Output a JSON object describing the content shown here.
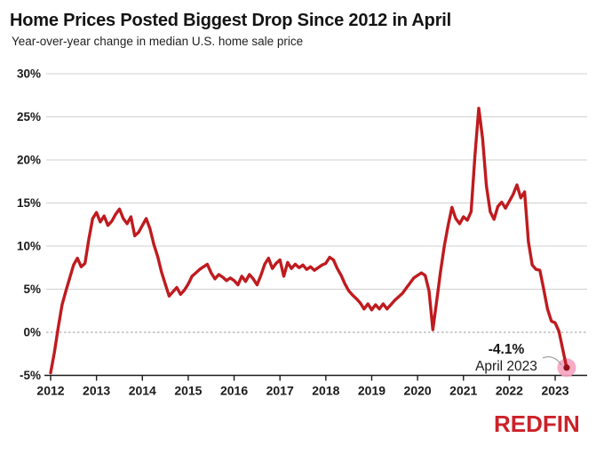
{
  "header": {
    "title": "Home Prices Posted Biggest Drop Since 2012 in April",
    "subtitle": "Year-over-year change in median U.S. home sale price"
  },
  "annotation": {
    "value_label": "-4.1%",
    "date_label": "April 2023"
  },
  "logo": {
    "text": "REDFIN",
    "color": "#cb2229"
  },
  "colors": {
    "line": "#bf1b1f",
    "line_dark": "#8e1014",
    "grid": "#d0d0d0",
    "zero_line": "#9a9a9a",
    "axis": "#1a1a1a",
    "highlight": "#f6a2c0",
    "leader": "#9a9a9a",
    "text": "#1a1a1a"
  },
  "chart_data": {
    "type": "line",
    "title": "Home Prices Posted Biggest Drop Since 2012 in April",
    "subtitle": "Year-over-year change in median U.S. home sale price",
    "x_unit": "month",
    "start": "2012-01",
    "end": "2023-04",
    "series": [
      {
        "name": "YoY change in median U.S. home sale price (%)",
        "values": [
          -4.7,
          -2.3,
          0.6,
          3.2,
          4.8,
          6.3,
          7.8,
          8.6,
          7.6,
          8.0,
          10.8,
          13.2,
          13.9,
          12.8,
          13.5,
          12.4,
          12.9,
          13.7,
          14.3,
          13.2,
          12.6,
          13.4,
          11.2,
          11.6,
          12.4,
          13.2,
          12.0,
          10.2,
          8.8,
          7.0,
          5.6,
          4.2,
          4.7,
          5.2,
          4.4,
          4.9,
          5.6,
          6.5,
          6.9,
          7.3,
          7.6,
          7.9,
          6.9,
          6.2,
          6.7,
          6.4,
          6.0,
          6.3,
          6.0,
          5.5,
          6.5,
          5.9,
          6.7,
          6.2,
          5.5,
          6.6,
          7.9,
          8.6,
          7.4,
          8.0,
          8.4,
          6.5,
          8.1,
          7.4,
          7.9,
          7.5,
          7.8,
          7.3,
          7.6,
          7.2,
          7.5,
          7.8,
          8.0,
          8.7,
          8.4,
          7.4,
          6.6,
          5.6,
          4.8,
          4.3,
          3.9,
          3.4,
          2.7,
          3.3,
          2.6,
          3.2,
          2.7,
          3.3,
          2.7,
          3.2,
          3.7,
          4.1,
          4.5,
          5.1,
          5.7,
          6.3,
          6.6,
          6.9,
          6.6,
          4.8,
          0.3,
          3.6,
          7.0,
          10.0,
          12.4,
          14.5,
          13.2,
          12.6,
          13.4,
          13.0,
          14.0,
          20.5,
          26.0,
          22.5,
          17.0,
          14.0,
          13.1,
          14.6,
          15.1,
          14.4,
          15.2,
          16.0,
          17.1,
          15.6,
          16.3,
          10.5,
          7.8,
          7.3,
          7.2,
          5.0,
          2.7,
          1.3,
          1.1,
          0.1,
          -2.0,
          -4.1
        ]
      }
    ],
    "xticks": [
      2012,
      2013,
      2014,
      2015,
      2016,
      2017,
      2018,
      2019,
      2020,
      2021,
      2022,
      2023
    ],
    "yticks": [
      30,
      25,
      20,
      15,
      10,
      5,
      0,
      -5
    ],
    "ytick_labels": [
      "30%",
      "25%",
      "20%",
      "15%",
      "10%",
      "5%",
      "0%",
      "-5%"
    ],
    "ylim": [
      -5,
      30
    ],
    "grid": "horizontal",
    "zero_line_style": "dashed",
    "legend": "none",
    "highlight_point": {
      "x": "2023-04",
      "y": -4.1
    },
    "annotation": {
      "value": "-4.1%",
      "date": "April 2023",
      "x": "2023-04",
      "y": -4.1
    }
  }
}
